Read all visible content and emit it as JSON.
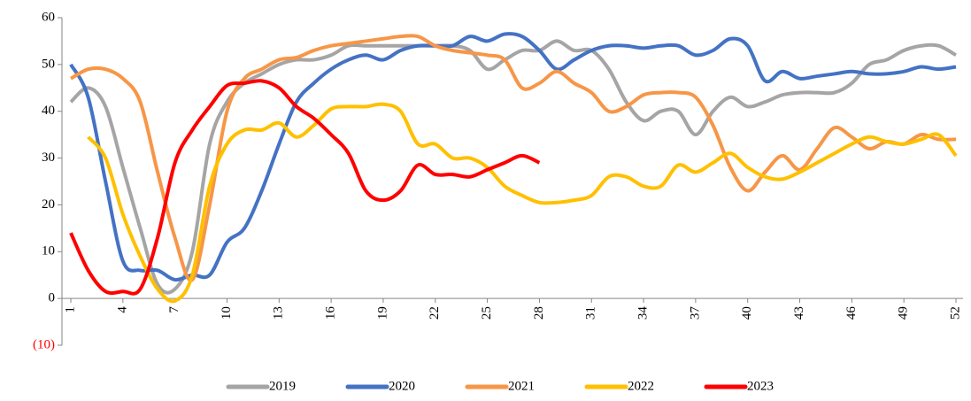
{
  "chart_data": {
    "type": "line",
    "x": [
      1,
      2,
      3,
      4,
      5,
      6,
      7,
      8,
      9,
      10,
      11,
      12,
      13,
      14,
      15,
      16,
      17,
      18,
      19,
      20,
      21,
      22,
      23,
      24,
      25,
      26,
      27,
      28,
      29,
      30,
      31,
      32,
      33,
      34,
      35,
      36,
      37,
      38,
      39,
      40,
      41,
      42,
      43,
      44,
      45,
      46,
      47,
      48,
      49,
      50,
      51,
      52
    ],
    "xlim": [
      1,
      52
    ],
    "xticks": [
      1,
      4,
      7,
      10,
      13,
      16,
      19,
      22,
      25,
      28,
      31,
      34,
      37,
      40,
      43,
      46,
      49,
      52
    ],
    "ylim": [
      -10,
      60
    ],
    "yticks": [
      {
        "value": -10,
        "label": "(10)"
      },
      0,
      10,
      20,
      30,
      40,
      50,
      60
    ],
    "negative_tick_color": "#ff0000",
    "legend": "bottom",
    "series": [
      {
        "name": "2019",
        "color": "#a5a5a5",
        "values": [
          42,
          45,
          41,
          28,
          15,
          3,
          2,
          10,
          33,
          42,
          46,
          48,
          50,
          51,
          51,
          52,
          54,
          54,
          54,
          54,
          54,
          54,
          54,
          53,
          49,
          51,
          53,
          53,
          55,
          53,
          53,
          49,
          42,
          38,
          40,
          40,
          35,
          40,
          43,
          41,
          42,
          43.5,
          44,
          44,
          44,
          46,
          50,
          51,
          53,
          54,
          54,
          52
        ]
      },
      {
        "name": "2020",
        "color": "#4472c4",
        "values": [
          50,
          43,
          25,
          8,
          6,
          6,
          4,
          5,
          5,
          12,
          15,
          23,
          33,
          42,
          46,
          49,
          51,
          52,
          51,
          53,
          54,
          54,
          54,
          56,
          55,
          56.5,
          56,
          53,
          49,
          51,
          53,
          54,
          54,
          53.5,
          54,
          54,
          52,
          53,
          55.5,
          54,
          46.5,
          48.5,
          47,
          47.5,
          48,
          48.5,
          48,
          48,
          48.5,
          49.5,
          49,
          49.5
        ]
      },
      {
        "name": "2021",
        "color": "#f79646",
        "values": [
          47,
          49,
          49,
          47,
          42,
          27,
          13,
          4,
          20,
          40,
          47,
          49,
          51,
          51.5,
          53,
          54,
          54.5,
          55,
          55.5,
          56,
          56,
          54,
          53,
          52.5,
          52,
          51,
          45,
          46,
          48.5,
          46,
          44,
          40,
          41,
          43.5,
          44,
          44,
          43,
          37,
          28,
          23,
          27,
          30.5,
          27.5,
          32,
          36.5,
          34.5,
          32,
          33.5,
          33,
          35,
          34,
          34
        ]
      },
      {
        "name": "2022",
        "color": "#ffc000",
        "values": [
          null,
          34.5,
          30,
          18,
          9,
          2,
          -0.5,
          5,
          24,
          33,
          36,
          36,
          37.5,
          34.5,
          37,
          40.5,
          41,
          41,
          41.5,
          40,
          33,
          33,
          30,
          30,
          28,
          24,
          22,
          20.5,
          20.5,
          21,
          22,
          26,
          26,
          24,
          24,
          28.5,
          27,
          29,
          31,
          28,
          26,
          25.5,
          27,
          29,
          31,
          33,
          34.5,
          33.5,
          33,
          34,
          35,
          30.5
        ]
      },
      {
        "name": "2023",
        "color": "#ff0000",
        "values": [
          14,
          6,
          1.5,
          1.5,
          2,
          13,
          29,
          36,
          41,
          45.5,
          46,
          46.5,
          45,
          41,
          38.5,
          35,
          31,
          23,
          21,
          23,
          28.5,
          26.5,
          26.5,
          26,
          27.5,
          29,
          30.5,
          29,
          null,
          null,
          null,
          null,
          null,
          null,
          null,
          null,
          null,
          null,
          null,
          null,
          null,
          null,
          null,
          null,
          null,
          null,
          null,
          null,
          null,
          null,
          null,
          null
        ]
      }
    ]
  }
}
